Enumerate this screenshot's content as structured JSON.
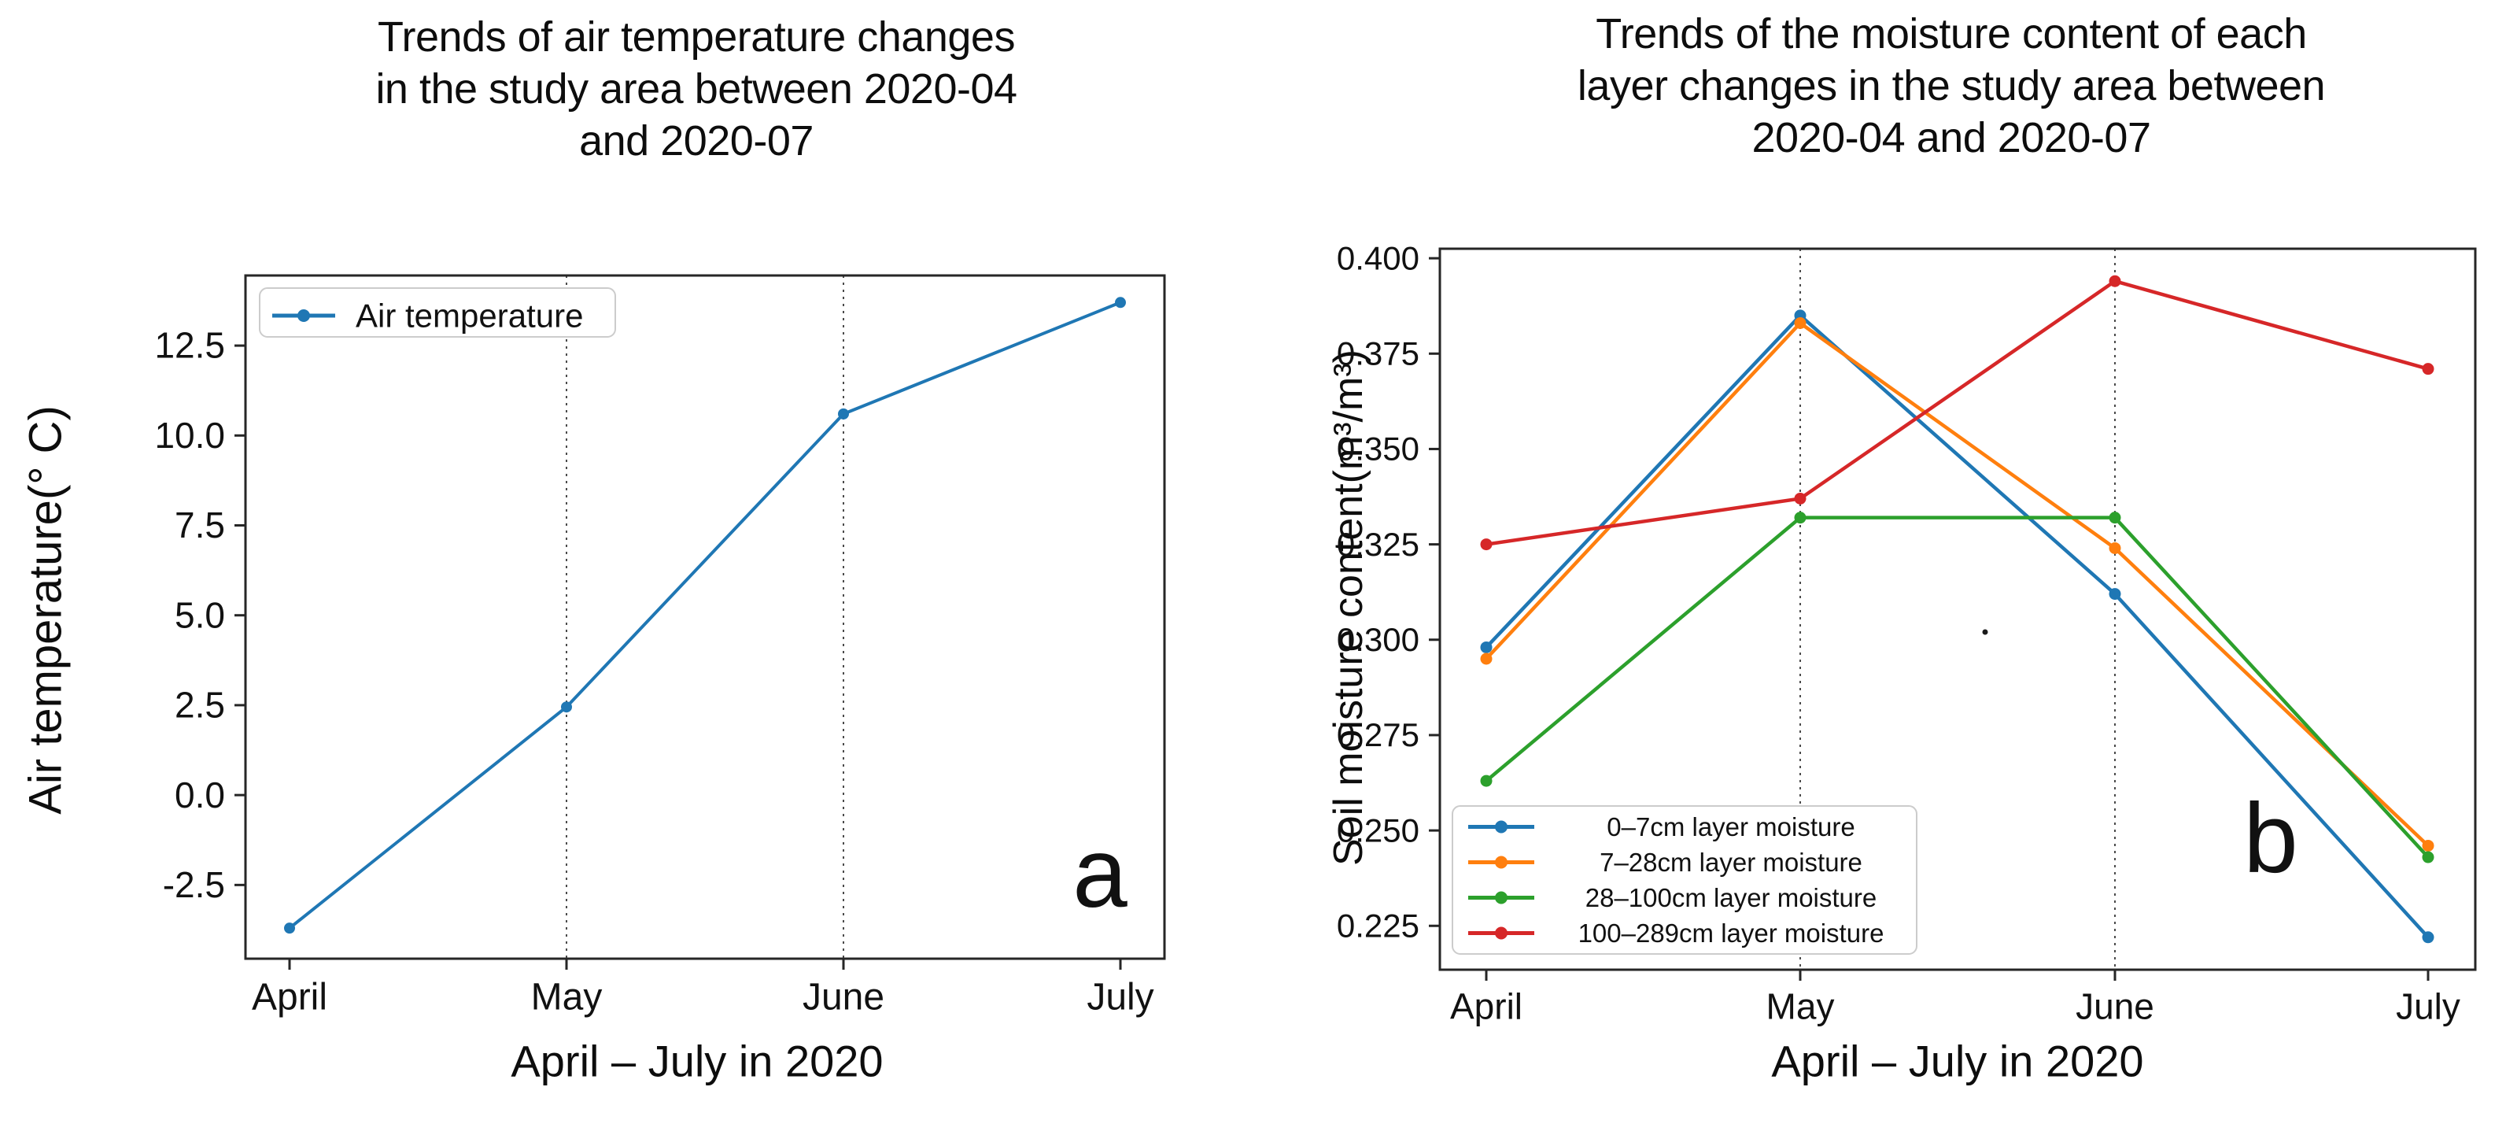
{
  "chart_data": [
    {
      "id": "a",
      "type": "line",
      "panel_letter": "a",
      "title": "Trends of air temperature changes in the study area between 2020-04 and 2020-07",
      "title_lines": [
        "Trends of air temperature changes",
        "in the study area between 2020-04",
        "and 2020-07"
      ],
      "xlabel": "April – July in 2020",
      "ylabel": "Air temperature(° C)",
      "categories": [
        "April",
        "May",
        "June",
        "July"
      ],
      "series": [
        {
          "name": "Air temperature",
          "color": "#1f77b4",
          "values": [
            -3.7,
            2.45,
            10.6,
            13.7
          ]
        }
      ],
      "yticks": [
        -2.5,
        0.0,
        2.5,
        5.0,
        7.5,
        10.0,
        12.5
      ],
      "ytick_labels": [
        "-2.5",
        "0.0",
        "2.5",
        "5.0",
        "7.5",
        "10.0",
        "12.5"
      ],
      "ylim": [
        -4.55,
        14.45
      ],
      "grid": "vertical dashed at May and June",
      "legend_position": "upper left"
    },
    {
      "id": "b",
      "type": "line",
      "panel_letter": "b",
      "title": "Trends of the moisture content of each layer changes in the study area between 2020-04 and 2020-07",
      "title_lines": [
        "Trends of the moisture content of each",
        "layer changes in the study area between",
        "2020-04 and 2020-07"
      ],
      "xlabel": "April – July in 2020",
      "ylabel": "Soil moisture content(m³/m³)",
      "categories": [
        "April",
        "May",
        "June",
        "July"
      ],
      "series": [
        {
          "name": "0–7cm layer moisture",
          "color": "#1f77b4",
          "values": [
            0.298,
            0.385,
            0.312,
            0.222
          ]
        },
        {
          "name": "7–28cm layer moisture",
          "color": "#ff7f0e",
          "values": [
            0.295,
            0.383,
            0.324,
            0.246
          ]
        },
        {
          "name": "28–100cm layer moisture",
          "color": "#2ca02c",
          "values": [
            0.263,
            0.332,
            0.332,
            0.243
          ]
        },
        {
          "name": "100–289cm layer moisture",
          "color": "#d62728",
          "values": [
            0.325,
            0.337,
            0.394,
            0.371
          ]
        }
      ],
      "yticks": [
        0.225,
        0.25,
        0.275,
        0.3,
        0.325,
        0.35,
        0.375,
        0.4
      ],
      "ytick_labels": [
        "0.225",
        "0.250",
        "0.275",
        "0.300",
        "0.325",
        "0.350",
        "0.375",
        "0.400"
      ],
      "ylim": [
        0.2135,
        0.4025
      ],
      "grid": "vertical dashed at May and June",
      "legend_position": "lower left"
    }
  ]
}
